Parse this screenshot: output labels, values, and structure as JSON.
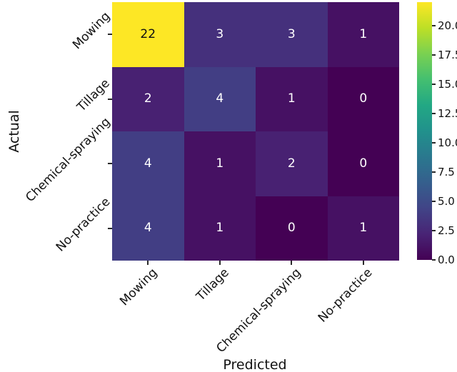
{
  "chart_data": {
    "type": "heatmap",
    "title": "",
    "xlabel": "Predicted",
    "ylabel": "Actual",
    "categories": [
      "Mowing",
      "Tillage",
      "Chemical-spraying",
      "No-practice"
    ],
    "x_categories": [
      "Mowing",
      "Tillage",
      "Chemical-spraying",
      "No-practice"
    ],
    "y_categories": [
      "Mowing",
      "Tillage",
      "Chemical-spraying",
      "No-practice"
    ],
    "matrix": [
      [
        22,
        3,
        3,
        1
      ],
      [
        2,
        4,
        1,
        0
      ],
      [
        4,
        1,
        2,
        0
      ],
      [
        4,
        1,
        0,
        1
      ]
    ],
    "vmin": 0,
    "vmax": 22,
    "colormap": "viridis",
    "colormap_stops": [
      "#440154",
      "#482475",
      "#414487",
      "#355f8d",
      "#2a788e",
      "#21918c",
      "#22a884",
      "#44bf70",
      "#7ad151",
      "#bddf26",
      "#fde725"
    ],
    "colorbar_ticks": [
      {
        "value": 0,
        "label": "0.0"
      },
      {
        "value": 2.5,
        "label": "2.5"
      },
      {
        "value": 5,
        "label": "5.0"
      },
      {
        "value": 7.5,
        "label": "7.5"
      },
      {
        "value": 10,
        "label": "10.0"
      },
      {
        "value": 12.5,
        "label": "12.5"
      },
      {
        "value": 15,
        "label": "15.0"
      },
      {
        "value": 17.5,
        "label": "17.5"
      },
      {
        "value": 20,
        "label": "20.0"
      }
    ],
    "cell_text_color_low": "#ffffff",
    "cell_text_color_high": "#0e0e10",
    "grid_on": false,
    "legend_position": "colorbar-right"
  }
}
